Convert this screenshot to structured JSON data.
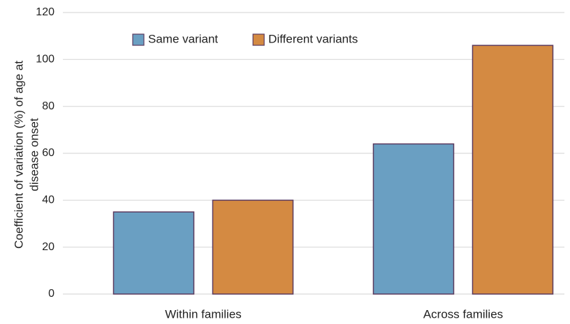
{
  "chart_data": {
    "type": "bar",
    "ylabel": [
      "Coefficient of variation (%) of age at",
      "disease onset"
    ],
    "categories": [
      "Within families",
      "Across families"
    ],
    "series": [
      {
        "name": "Same variant",
        "color": "#6a9fc2",
        "values": [
          35,
          64
        ]
      },
      {
        "name": "Different variants",
        "color": "#d48a42",
        "values": [
          40,
          106
        ]
      }
    ],
    "ylim": [
      0,
      120
    ],
    "yticks": [
      0,
      20,
      40,
      60,
      80,
      100,
      120
    ],
    "grid": true,
    "legend": "top"
  }
}
